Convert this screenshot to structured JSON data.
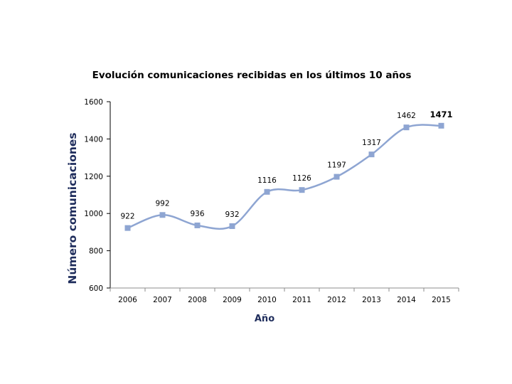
{
  "chart_data": {
    "type": "line",
    "title": "Evolución comunicaciones recibidas en los últimos 10 años",
    "xlabel": "Año",
    "ylabel": "Número comunicaciones",
    "categories": [
      "2006",
      "2007",
      "2008",
      "2009",
      "2010",
      "2011",
      "2012",
      "2013",
      "2014",
      "2015"
    ],
    "series": [
      {
        "name": "Comunicaciones recibidas",
        "values": [
          922,
          992,
          936,
          932,
          1116,
          1126,
          1197,
          1317,
          1462,
          1471
        ],
        "color": "#8ea5d2",
        "marker": "square",
        "smooth": true
      }
    ],
    "data_labels": [
      "922",
      "992",
      "936",
      "932",
      "1116",
      "1126",
      "1197",
      "1317",
      "1462",
      "1471"
    ],
    "highlighted_label_index": 9,
    "ylim": [
      600,
      1600
    ],
    "yticks": [
      "600",
      "800",
      "1000",
      "1200",
      "1400",
      "1600"
    ],
    "ytick_values": [
      600,
      800,
      1000,
      1200,
      1400,
      1600
    ],
    "grid": false,
    "legend": "none",
    "axis_title_color": "#1f2d5c"
  }
}
